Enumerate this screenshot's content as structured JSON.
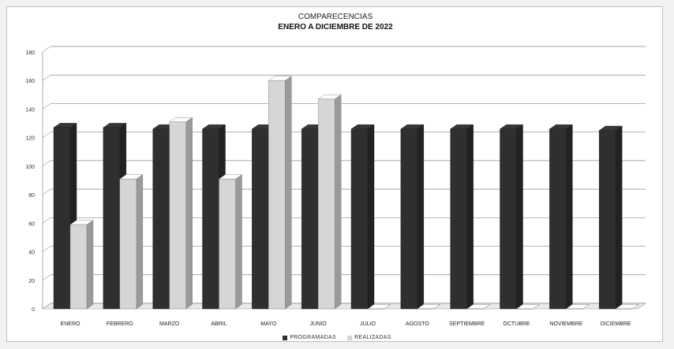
{
  "chart_data": {
    "type": "bar",
    "title": "COMPARECENCIAS",
    "subtitle": "ENERO A DICIEMBRE DE 2022",
    "categories": [
      "ENERO",
      "FEBRERO",
      "MARZO",
      "ABRIL",
      "MAYO",
      "JUNIO",
      "JULIO",
      "AGOSTO",
      "SEPTIEMBRE",
      "OCTUBRE",
      "NOVIEMBRE",
      "DICIEMBRE"
    ],
    "series": [
      {
        "name": "PROGRAMADAS",
        "values": [
          127,
          127,
          126,
          126,
          126,
          126,
          126,
          126,
          126,
          126,
          126,
          125
        ],
        "color": "#2f2f2f"
      },
      {
        "name": "REALIZADAS",
        "values": [
          59,
          91,
          131,
          91,
          160,
          147,
          0,
          0,
          0,
          0,
          0,
          0
        ],
        "color": "#d6d6d6"
      }
    ],
    "ylim": [
      0,
      180
    ],
    "yticks": [
      0,
      20,
      40,
      60,
      80,
      100,
      120,
      140,
      160,
      180
    ],
    "grid": true,
    "legend_position": "bottom",
    "three_d": true
  }
}
